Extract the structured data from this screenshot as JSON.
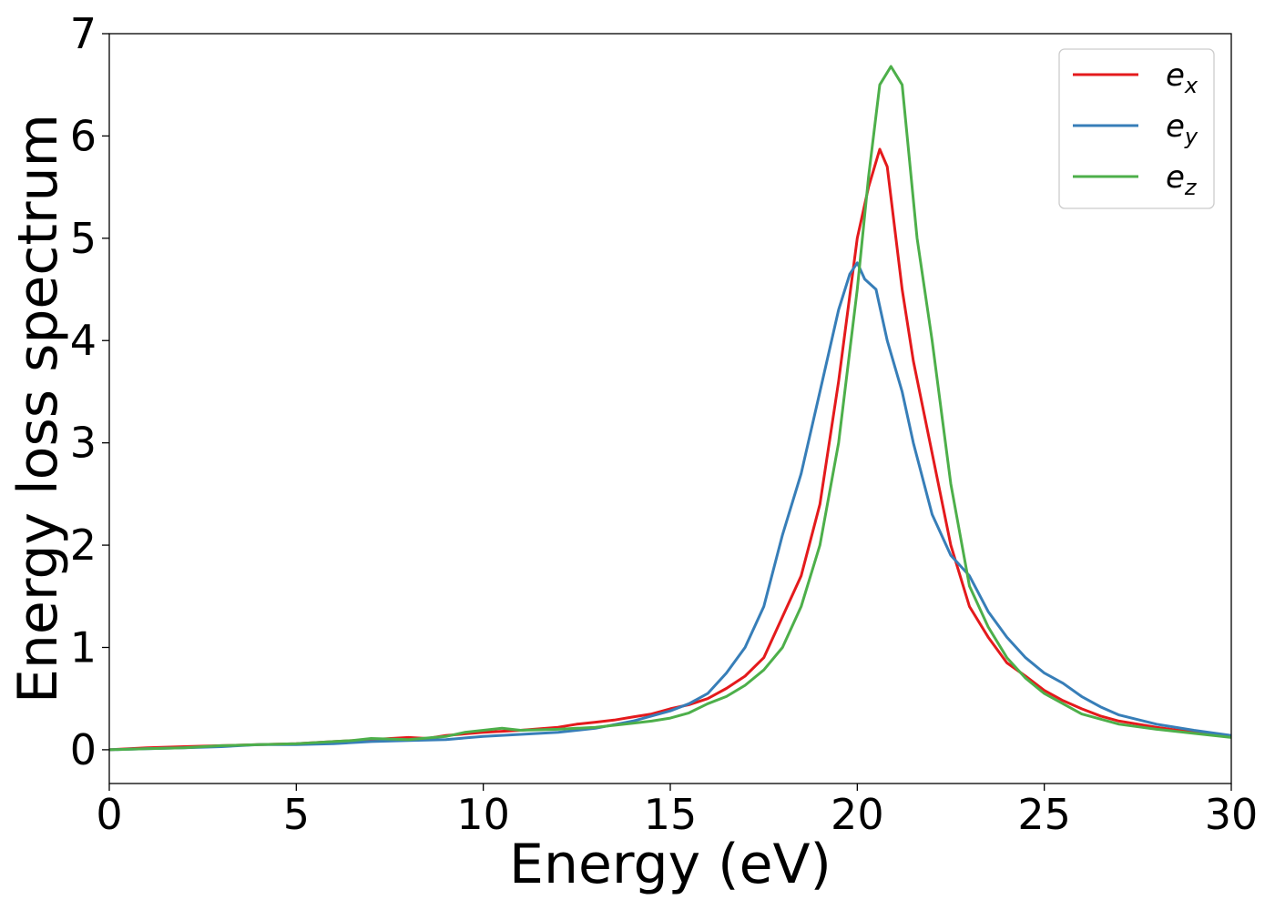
{
  "chart_data": {
    "type": "line",
    "title": "",
    "xlabel": "Energy (eV)",
    "ylabel": "Energy loss spectrum",
    "xlim": [
      0,
      30
    ],
    "ylim": [
      -0.33,
      7
    ],
    "xticks": [
      0,
      5,
      10,
      15,
      20,
      25,
      30
    ],
    "yticks": [
      0,
      1,
      2,
      3,
      4,
      5,
      6,
      7
    ],
    "grid": false,
    "legend_position": "top-right",
    "series": [
      {
        "name": "e_x",
        "label_main": "e",
        "label_sub": "x",
        "color": "#e41a1c",
        "points": [
          [
            0,
            0
          ],
          [
            1,
            0.02
          ],
          [
            2,
            0.03
          ],
          [
            3,
            0.04
          ],
          [
            4,
            0.05
          ],
          [
            5,
            0.06
          ],
          [
            6,
            0.08
          ],
          [
            7,
            0.1
          ],
          [
            8,
            0.12
          ],
          [
            8.5,
            0.11
          ],
          [
            9,
            0.14
          ],
          [
            10,
            0.17
          ],
          [
            11,
            0.19
          ],
          [
            12,
            0.22
          ],
          [
            12.5,
            0.25
          ],
          [
            13,
            0.27
          ],
          [
            13.5,
            0.29
          ],
          [
            14,
            0.32
          ],
          [
            14.5,
            0.35
          ],
          [
            15,
            0.4
          ],
          [
            15.5,
            0.44
          ],
          [
            16,
            0.5
          ],
          [
            16.5,
            0.6
          ],
          [
            17,
            0.72
          ],
          [
            17.5,
            0.9
          ],
          [
            18,
            1.3
          ],
          [
            18.5,
            1.7
          ],
          [
            19,
            2.4
          ],
          [
            19.5,
            3.6
          ],
          [
            20,
            5.0
          ],
          [
            20.3,
            5.5
          ],
          [
            20.6,
            5.87
          ],
          [
            20.8,
            5.7
          ],
          [
            21.2,
            4.5
          ],
          [
            21.5,
            3.8
          ],
          [
            22,
            2.9
          ],
          [
            22.5,
            2.0
          ],
          [
            23,
            1.4
          ],
          [
            23.5,
            1.1
          ],
          [
            24,
            0.85
          ],
          [
            24.5,
            0.72
          ],
          [
            25,
            0.58
          ],
          [
            25.5,
            0.48
          ],
          [
            26,
            0.4
          ],
          [
            26.5,
            0.33
          ],
          [
            27,
            0.28
          ],
          [
            28,
            0.22
          ],
          [
            29,
            0.17
          ],
          [
            30,
            0.13
          ]
        ]
      },
      {
        "name": "e_y",
        "label_main": "e",
        "label_sub": "y",
        "color": "#377eb8",
        "points": [
          [
            0,
            0
          ],
          [
            1,
            0.01
          ],
          [
            2,
            0.02
          ],
          [
            3,
            0.03
          ],
          [
            4,
            0.05
          ],
          [
            5,
            0.05
          ],
          [
            6,
            0.06
          ],
          [
            7,
            0.08
          ],
          [
            8,
            0.09
          ],
          [
            9,
            0.1
          ],
          [
            10,
            0.13
          ],
          [
            11,
            0.15
          ],
          [
            12,
            0.17
          ],
          [
            13,
            0.21
          ],
          [
            14,
            0.28
          ],
          [
            14.5,
            0.33
          ],
          [
            15,
            0.38
          ],
          [
            15.5,
            0.45
          ],
          [
            16,
            0.55
          ],
          [
            16.5,
            0.75
          ],
          [
            17,
            1.0
          ],
          [
            17.5,
            1.4
          ],
          [
            18,
            2.1
          ],
          [
            18.5,
            2.7
          ],
          [
            19,
            3.5
          ],
          [
            19.5,
            4.3
          ],
          [
            19.8,
            4.65
          ],
          [
            20,
            4.76
          ],
          [
            20.2,
            4.6
          ],
          [
            20.5,
            4.5
          ],
          [
            20.8,
            4.0
          ],
          [
            21.2,
            3.5
          ],
          [
            21.5,
            3.0
          ],
          [
            22,
            2.3
          ],
          [
            22.5,
            1.9
          ],
          [
            23,
            1.7
          ],
          [
            23.5,
            1.35
          ],
          [
            24,
            1.1
          ],
          [
            24.5,
            0.9
          ],
          [
            25,
            0.75
          ],
          [
            25.5,
            0.65
          ],
          [
            26,
            0.52
          ],
          [
            26.5,
            0.42
          ],
          [
            27,
            0.34
          ],
          [
            28,
            0.25
          ],
          [
            29,
            0.19
          ],
          [
            30,
            0.14
          ]
        ]
      },
      {
        "name": "e_z",
        "label_main": "e",
        "label_sub": "z",
        "color": "#4daf4a",
        "points": [
          [
            0,
            0
          ],
          [
            1,
            0.01
          ],
          [
            2,
            0.02
          ],
          [
            3,
            0.04
          ],
          [
            4,
            0.05
          ],
          [
            5,
            0.06
          ],
          [
            6,
            0.08
          ],
          [
            6.5,
            0.09
          ],
          [
            7,
            0.11
          ],
          [
            8,
            0.1
          ],
          [
            9,
            0.13
          ],
          [
            9.5,
            0.17
          ],
          [
            10,
            0.19
          ],
          [
            10.5,
            0.21
          ],
          [
            11,
            0.19
          ],
          [
            12,
            0.2
          ],
          [
            13,
            0.22
          ],
          [
            14,
            0.26
          ],
          [
            14.5,
            0.28
          ],
          [
            15,
            0.31
          ],
          [
            15.5,
            0.36
          ],
          [
            16,
            0.45
          ],
          [
            16.5,
            0.52
          ],
          [
            17,
            0.63
          ],
          [
            17.5,
            0.78
          ],
          [
            18,
            1.0
          ],
          [
            18.5,
            1.4
          ],
          [
            19,
            2.0
          ],
          [
            19.5,
            3.0
          ],
          [
            20,
            4.5
          ],
          [
            20.3,
            5.6
          ],
          [
            20.6,
            6.5
          ],
          [
            20.9,
            6.68
          ],
          [
            21.2,
            6.5
          ],
          [
            21.6,
            5.0
          ],
          [
            22,
            4.0
          ],
          [
            22.5,
            2.6
          ],
          [
            23,
            1.6
          ],
          [
            23.5,
            1.2
          ],
          [
            24,
            0.9
          ],
          [
            24.5,
            0.7
          ],
          [
            25,
            0.55
          ],
          [
            25.5,
            0.45
          ],
          [
            26,
            0.35
          ],
          [
            26.5,
            0.3
          ],
          [
            27,
            0.25
          ],
          [
            28,
            0.2
          ],
          [
            29,
            0.16
          ],
          [
            30,
            0.12
          ]
        ]
      }
    ]
  }
}
